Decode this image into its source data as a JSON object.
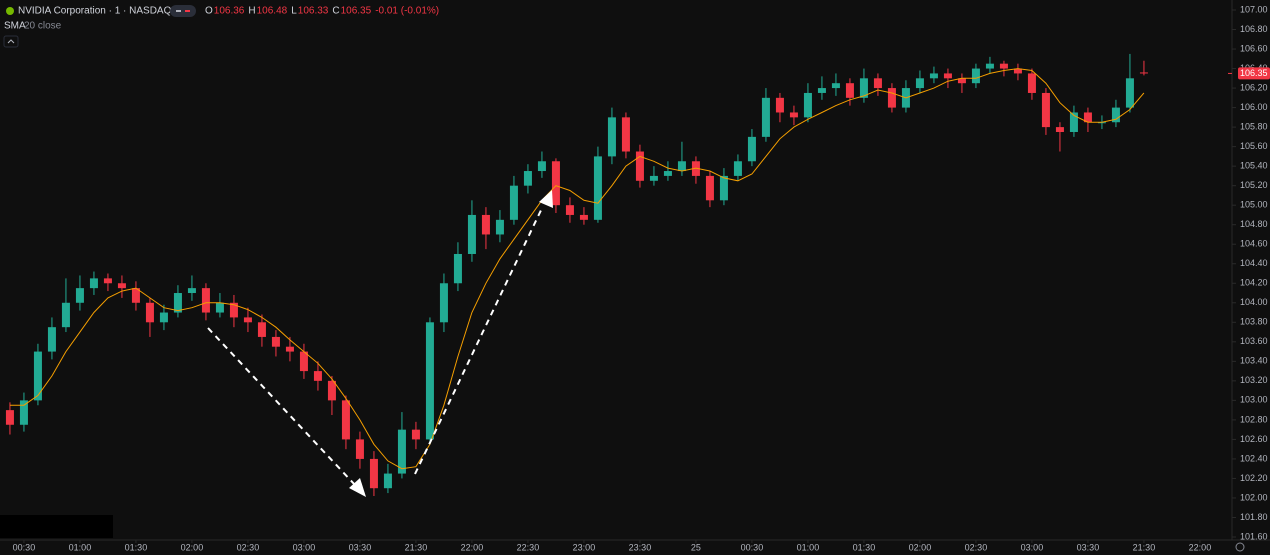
{
  "chart_data": {
    "type": "candlestick",
    "title": "NVIDIA Corporation · 1 · NASDAQ",
    "readout": [
      {
        "key": "O",
        "value": "106.36"
      },
      {
        "key": "H",
        "value": "106.48"
      },
      {
        "key": "L",
        "value": "106.33"
      },
      {
        "key": "C",
        "value": "106.35"
      }
    ],
    "change": "-0.01 (-0.01%)",
    "last_price_label": {
      "value": 106.35,
      "label": "106.35"
    },
    "up_color": "#22ab94",
    "down_color": "#f23645",
    "open": [
      102.9,
      102.75,
      103.0,
      103.5,
      103.75,
      104.0,
      104.15,
      104.25,
      104.2,
      104.15,
      104.0,
      103.8,
      103.9,
      104.1,
      104.15,
      103.9,
      104.0,
      103.85,
      103.8,
      103.65,
      103.55,
      103.5,
      103.3,
      103.2,
      103.0,
      102.6,
      102.4,
      102.1,
      102.25,
      102.7,
      102.6,
      103.8,
      104.2,
      104.5,
      104.9,
      104.7,
      104.85,
      105.2,
      105.35,
      105.45,
      105.0,
      104.9,
      104.85,
      105.5,
      105.9,
      105.55,
      105.25,
      105.3,
      105.35,
      105.45,
      105.3,
      105.05,
      105.3,
      105.45,
      105.7,
      106.1,
      105.95,
      105.9,
      106.15,
      106.2,
      106.25,
      106.1,
      106.3,
      106.2,
      106.0,
      106.2,
      106.3,
      106.35,
      106.3,
      106.25,
      106.4,
      106.45,
      106.4,
      106.35,
      106.15,
      105.8,
      105.75,
      105.95,
      105.85,
      105.85,
      106.0,
      106.36
    ],
    "high": [
      102.98,
      103.08,
      103.58,
      103.85,
      104.25,
      104.28,
      104.32,
      104.3,
      104.28,
      104.22,
      104.05,
      103.98,
      104.18,
      104.28,
      104.2,
      104.1,
      104.08,
      103.95,
      103.88,
      103.72,
      103.65,
      103.58,
      103.4,
      103.25,
      103.05,
      102.68,
      102.48,
      102.35,
      102.88,
      102.78,
      103.85,
      104.3,
      104.62,
      105.05,
      104.98,
      104.95,
      105.3,
      105.42,
      105.55,
      105.48,
      105.08,
      104.98,
      105.6,
      106.0,
      105.95,
      105.62,
      105.4,
      105.45,
      105.65,
      105.5,
      105.35,
      105.38,
      105.52,
      105.78,
      106.2,
      106.15,
      106.02,
      106.25,
      106.32,
      106.35,
      106.3,
      106.4,
      106.35,
      106.25,
      106.28,
      106.38,
      106.42,
      106.4,
      106.35,
      106.45,
      106.52,
      106.48,
      106.45,
      106.4,
      106.2,
      105.85,
      106.02,
      106.0,
      105.92,
      106.08,
      106.55,
      106.48
    ],
    "low": [
      102.65,
      102.68,
      102.95,
      103.42,
      103.7,
      103.92,
      104.08,
      104.12,
      104.05,
      103.92,
      103.65,
      103.72,
      103.85,
      104.02,
      103.82,
      103.85,
      103.75,
      103.7,
      103.55,
      103.45,
      103.4,
      103.22,
      103.1,
      102.85,
      102.5,
      102.3,
      102.02,
      102.05,
      102.2,
      102.5,
      102.55,
      103.7,
      104.12,
      104.42,
      104.55,
      104.62,
      104.8,
      105.12,
      105.28,
      104.92,
      104.82,
      104.8,
      104.82,
      105.42,
      105.48,
      105.18,
      105.2,
      105.25,
      105.3,
      105.22,
      104.98,
      105.0,
      105.25,
      105.4,
      105.65,
      105.85,
      105.82,
      105.85,
      106.08,
      106.12,
      106.02,
      106.05,
      106.12,
      105.95,
      105.95,
      106.15,
      106.25,
      106.2,
      106.15,
      106.2,
      106.35,
      106.32,
      106.28,
      106.08,
      105.72,
      105.55,
      105.7,
      105.75,
      105.78,
      105.8,
      105.95,
      106.33
    ],
    "close": [
      102.75,
      103.0,
      103.5,
      103.75,
      104.0,
      104.15,
      104.25,
      104.2,
      104.15,
      104.0,
      103.8,
      103.9,
      104.1,
      104.15,
      103.9,
      104.0,
      103.85,
      103.8,
      103.65,
      103.55,
      103.5,
      103.3,
      103.2,
      103.0,
      102.6,
      102.4,
      102.1,
      102.25,
      102.7,
      102.6,
      103.8,
      104.2,
      104.5,
      104.9,
      104.7,
      104.85,
      105.2,
      105.35,
      105.45,
      105.0,
      104.9,
      104.85,
      105.5,
      105.9,
      105.55,
      105.25,
      105.3,
      105.35,
      105.45,
      105.3,
      105.05,
      105.3,
      105.45,
      105.7,
      106.1,
      105.95,
      105.9,
      106.15,
      106.2,
      106.25,
      106.1,
      106.3,
      106.2,
      106.0,
      106.2,
      106.3,
      106.35,
      106.3,
      106.25,
      106.4,
      106.45,
      106.4,
      106.35,
      106.15,
      105.8,
      105.75,
      105.95,
      105.85,
      105.85,
      106.0,
      106.3,
      106.35
    ],
    "sma": {
      "name": "SMA",
      "params": "20 close",
      "color": "#f59f00",
      "values": [
        102.95,
        102.95,
        103.05,
        103.25,
        103.5,
        103.7,
        103.9,
        104.05,
        104.12,
        104.15,
        104.05,
        103.95,
        103.92,
        103.95,
        104.0,
        104.0,
        103.98,
        103.93,
        103.85,
        103.75,
        103.62,
        103.5,
        103.38,
        103.22,
        103.02,
        102.8,
        102.55,
        102.38,
        102.3,
        102.32,
        102.55,
        102.95,
        103.45,
        103.9,
        104.2,
        104.45,
        104.65,
        104.85,
        105.05,
        105.2,
        105.15,
        105.05,
        105.02,
        105.2,
        105.4,
        105.5,
        105.45,
        105.38,
        105.35,
        105.38,
        105.35,
        105.28,
        105.25,
        105.32,
        105.5,
        105.68,
        105.8,
        105.88,
        105.95,
        106.02,
        106.08,
        106.12,
        106.18,
        106.15,
        106.1,
        106.15,
        106.2,
        106.27,
        106.3,
        106.3,
        106.35,
        106.38,
        106.4,
        106.38,
        106.25,
        106.05,
        105.92,
        105.85,
        105.85,
        105.88,
        105.98,
        106.15
      ]
    },
    "xlim": [
      -0.71,
      87.29
    ],
    "xticks": [
      {
        "value": 1,
        "label": "00:30"
      },
      {
        "value": 5,
        "label": "01:00"
      },
      {
        "value": 9,
        "label": "01:30"
      },
      {
        "value": 13,
        "label": "02:00"
      },
      {
        "value": 17,
        "label": "02:30"
      },
      {
        "value": 21,
        "label": "03:00"
      },
      {
        "value": 25,
        "label": "03:30"
      },
      {
        "value": 29,
        "label": "21:30"
      },
      {
        "value": 33,
        "label": "22:00"
      },
      {
        "value": 37,
        "label": "22:30"
      },
      {
        "value": 41,
        "label": "23:00"
      },
      {
        "value": 45,
        "label": "23:30"
      },
      {
        "value": 49,
        "label": "25"
      },
      {
        "value": 53,
        "label": "00:30"
      },
      {
        "value": 57,
        "label": "01:00"
      },
      {
        "value": 61,
        "label": "01:30"
      },
      {
        "value": 65,
        "label": "02:00"
      },
      {
        "value": 69,
        "label": "02:30"
      },
      {
        "value": 73,
        "label": "03:00"
      },
      {
        "value": 77,
        "label": "03:30"
      },
      {
        "value": 81,
        "label": "21:30"
      },
      {
        "value": 85,
        "label": "22:00"
      }
    ],
    "ylim": [
      101.6,
      107.0
    ],
    "yticks": [
      {
        "value": 101.6,
        "label": "101.60"
      },
      {
        "value": 101.8,
        "label": "101.80"
      },
      {
        "value": 102.0,
        "label": "102.00"
      },
      {
        "value": 102.2,
        "label": "102.20"
      },
      {
        "value": 102.4,
        "label": "102.40"
      },
      {
        "value": 102.6,
        "label": "102.60"
      },
      {
        "value": 102.8,
        "label": "102.80"
      },
      {
        "value": 103.0,
        "label": "103.00"
      },
      {
        "value": 103.2,
        "label": "103.20"
      },
      {
        "value": 103.4,
        "label": "103.40"
      },
      {
        "value": 103.6,
        "label": "103.60"
      },
      {
        "value": 103.8,
        "label": "103.80"
      },
      {
        "value": 104.0,
        "label": "104.00"
      },
      {
        "value": 104.2,
        "label": "104.20"
      },
      {
        "value": 104.4,
        "label": "104.40"
      },
      {
        "value": 104.6,
        "label": "104.60"
      },
      {
        "value": 104.8,
        "label": "104.80"
      },
      {
        "value": 105.0,
        "label": "105.00"
      },
      {
        "value": 105.2,
        "label": "105.20"
      },
      {
        "value": 105.4,
        "label": "105.40"
      },
      {
        "value": 105.6,
        "label": "105.60"
      },
      {
        "value": 105.8,
        "label": "105.80"
      },
      {
        "value": 106.0,
        "label": "106.00"
      },
      {
        "value": 106.2,
        "label": "106.20"
      },
      {
        "value": 106.4,
        "label": "106.40"
      },
      {
        "value": 106.6,
        "label": "106.60"
      },
      {
        "value": 106.8,
        "label": "106.80"
      },
      {
        "value": 107.0,
        "label": "107.00"
      }
    ]
  }
}
